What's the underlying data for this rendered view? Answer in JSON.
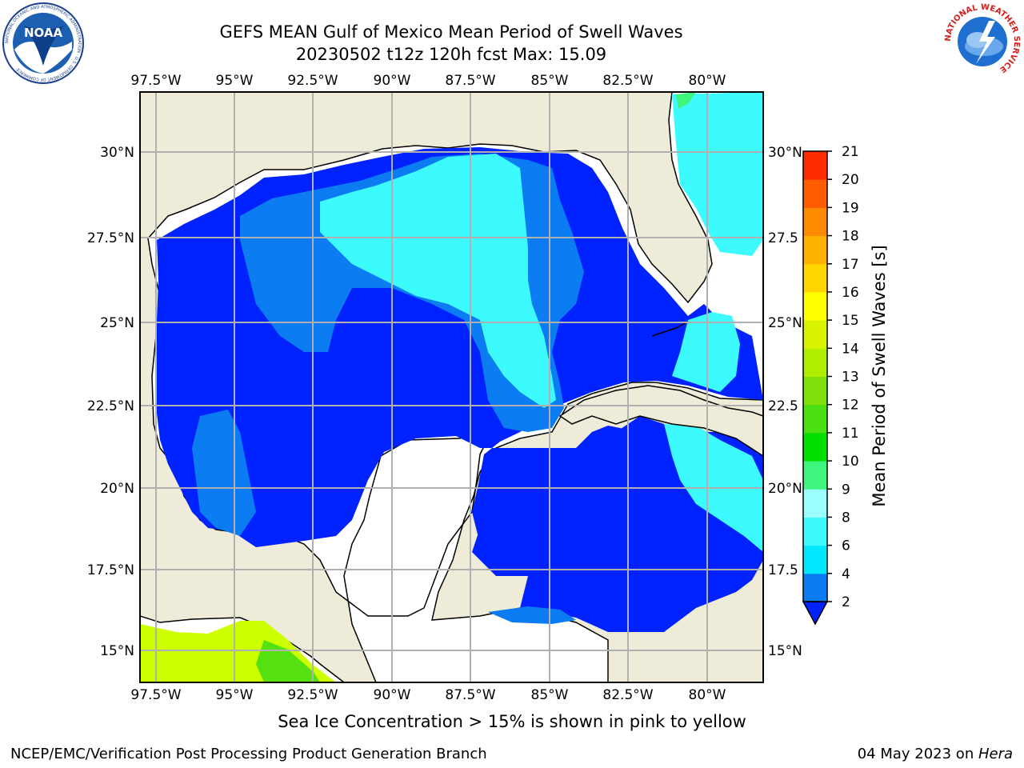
{
  "header": {
    "title_line1": "GEFS MEAN Gulf of Mexico Mean Period of Swell Waves",
    "title_line2": "20230502 t12z 120h fcst   Max: 15.09"
  },
  "logos": [
    {
      "name": "noaa-logo",
      "label": "NOAA",
      "ring_text": "NATIONAL OCEANIC AND ATMOSPHERIC ADMINISTRATION · U.S. DEPARTMENT OF COMMERCE"
    },
    {
      "name": "nws-logo",
      "ring_text": "NATIONAL WEATHER SERVICE"
    }
  ],
  "map": {
    "lon_labels": [
      "97.5°W",
      "95°W",
      "92.5°W",
      "90°W",
      "87.5°W",
      "85°W",
      "82.5°W",
      "80°W"
    ],
    "lat_labels_left": [
      "30°N",
      "27.5°N",
      "25°N",
      "22.5°N",
      "20°N",
      "17.5°N",
      "15°N"
    ],
    "lat_labels_right": [
      "30°N",
      "27.5",
      "25°N",
      "22.5",
      "20°N",
      "17.5",
      "15°N"
    ],
    "colors": {
      "land": "#eeecd9",
      "frame": "#000000",
      "grid": "#b0b0b0"
    }
  },
  "colorbar": {
    "label": "Mean Period of Swell Waves [s]",
    "ticks": [
      "2",
      "4",
      "6",
      "8",
      "9",
      "10",
      "11",
      "12",
      "13",
      "14",
      "15",
      "16",
      "17",
      "18",
      "19",
      "20",
      "21"
    ],
    "colors": [
      "#0022ff",
      "#0b7cf2",
      "#00e8ff",
      "#3dfaff",
      "#9bfdfd",
      "#40f57e",
      "#00e000",
      "#4ae011",
      "#7fe00b",
      "#b0ee00",
      "#d8f200",
      "#ffff00",
      "#ffd600",
      "#ffb100",
      "#ff8c00",
      "#ff5c00",
      "#ff2b00",
      "#ff0000"
    ]
  },
  "caption": "Sea Ice Concentration > 15% is shown in pink to yellow",
  "footer": {
    "left": "NCEP/EMC/Verification Post Processing Product Generation Branch",
    "right_prefix": "04 May 2023 on ",
    "right_host": "Hera"
  }
}
